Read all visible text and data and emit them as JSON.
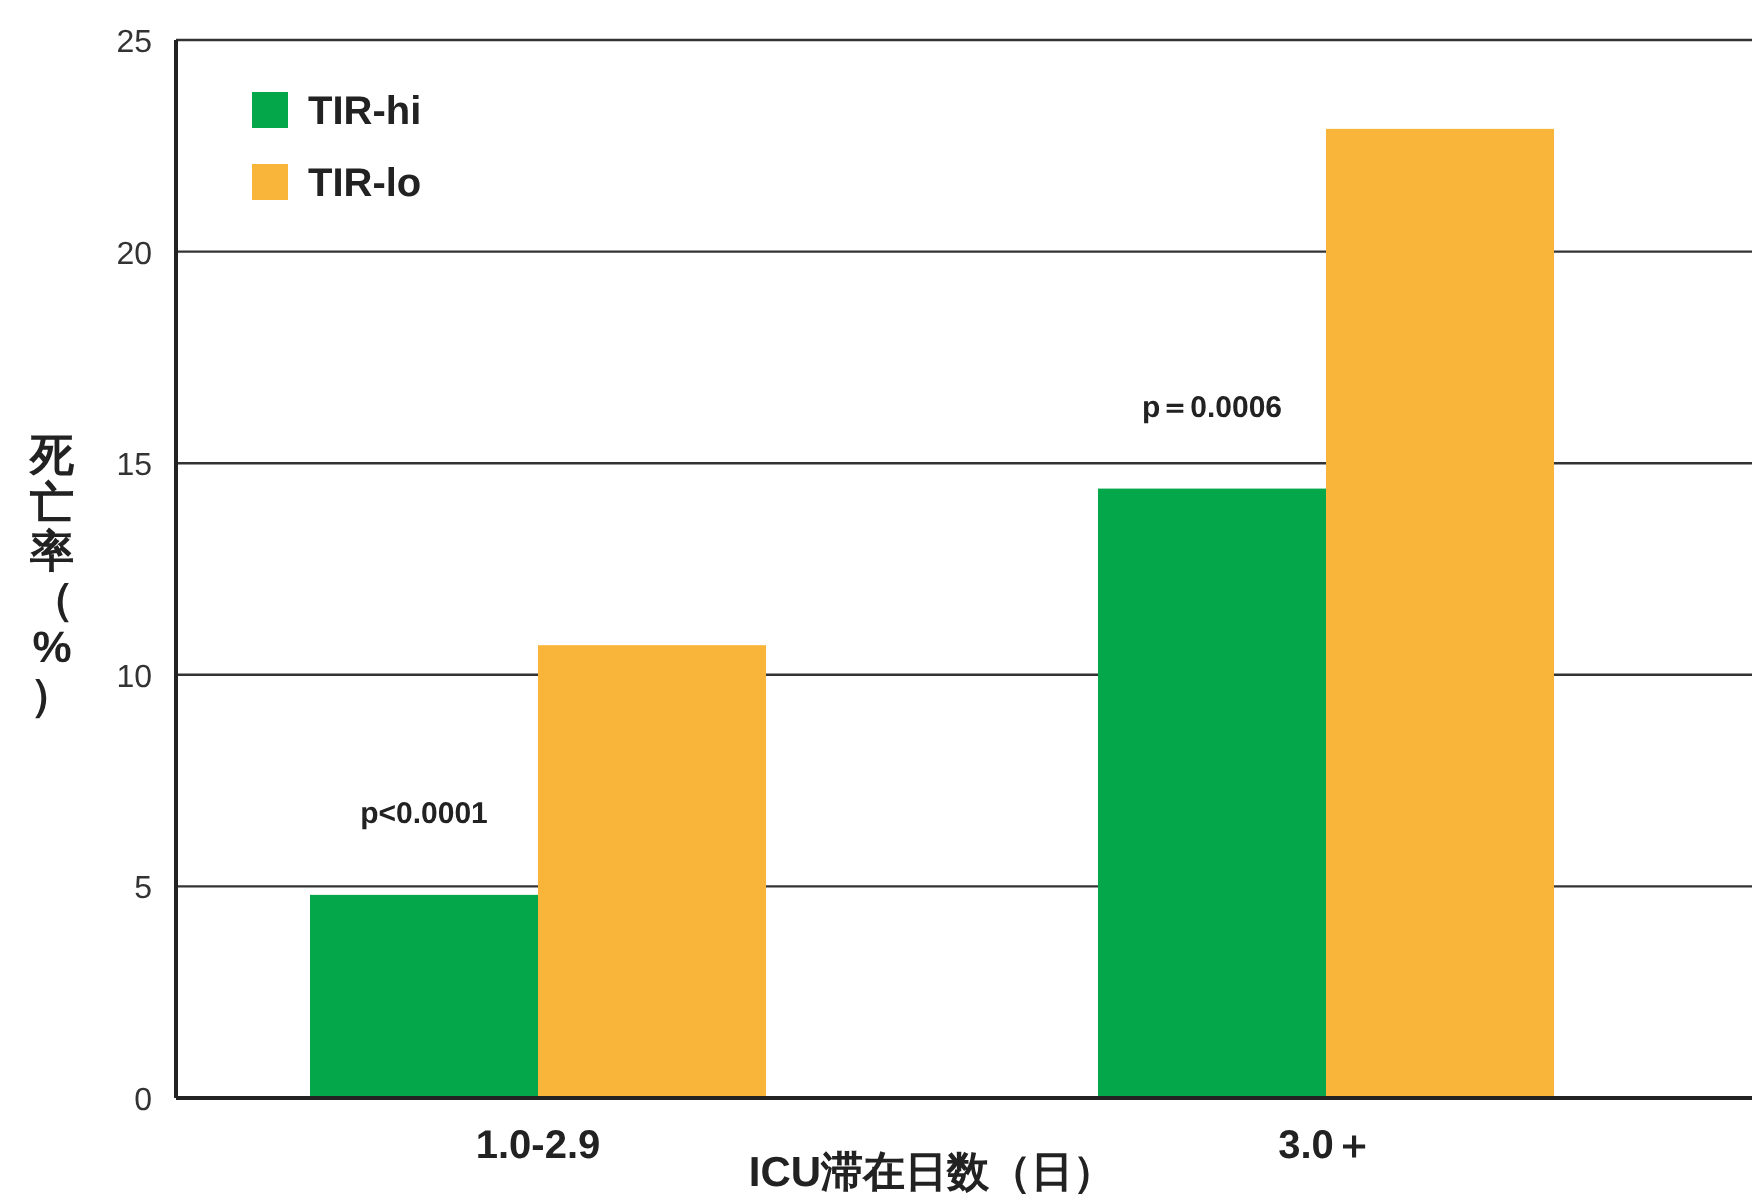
{
  "chart_data": {
    "type": "bar",
    "xlabel": "ICU滞在日数（日）",
    "ylabel": "死亡率（%）",
    "categories": [
      "1.0-2.9",
      "3.0＋"
    ],
    "series": [
      {
        "name": "TIR-hi",
        "color": "#04a84a",
        "values": [
          4.8,
          14.4
        ]
      },
      {
        "name": "TIR-lo",
        "color": "#f9b43a",
        "values": [
          10.7,
          22.9
        ]
      }
    ],
    "ylim": [
      0,
      25
    ],
    "yticks": [
      0,
      5,
      10,
      15,
      20,
      25
    ],
    "grid": "y",
    "legend": "top left",
    "annotations": [
      {
        "text": "p<0.0001",
        "x": "1.0-2.9",
        "y": 6.5
      },
      {
        "text": "p＝0.0006",
        "x": "3.0＋",
        "y": 16.1
      }
    ]
  }
}
